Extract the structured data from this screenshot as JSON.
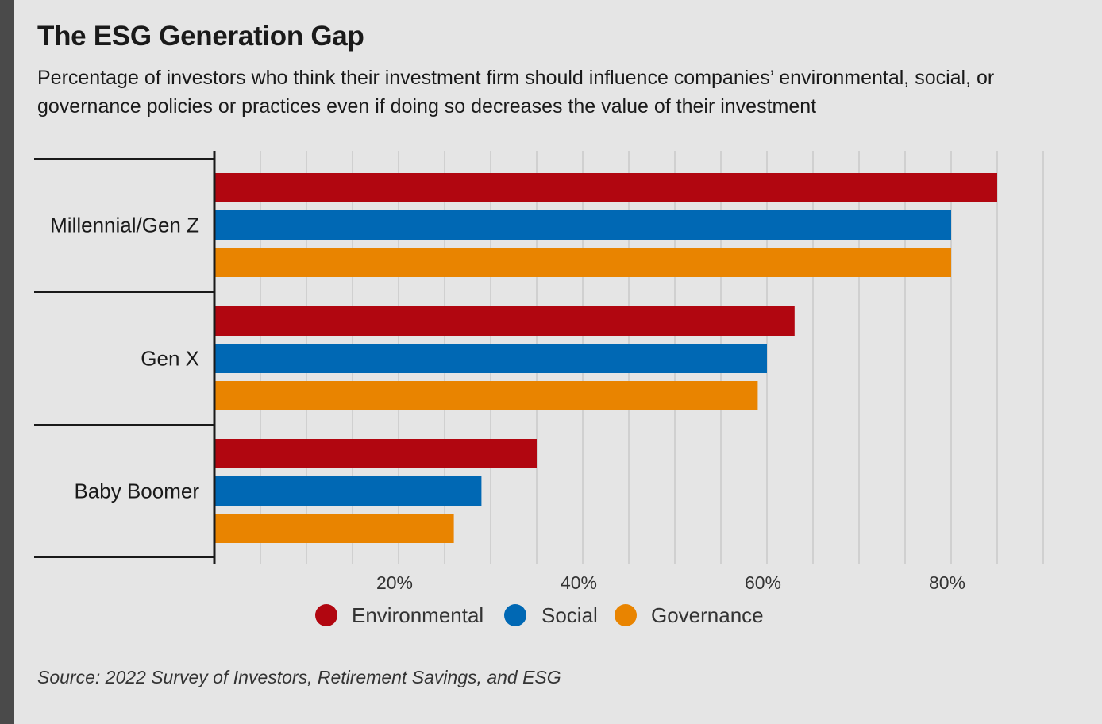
{
  "colors": {
    "environmental": "#b10610",
    "social": "#0068b4",
    "governance": "#e98400",
    "background": "#e5e5e5",
    "accent_bar": "#4a4a4a"
  },
  "chart_data": {
    "type": "bar",
    "orientation": "horizontal",
    "title": "The ESG Generation Gap",
    "subtitle": "Percentage of investors who think their investment firm should influence companies’ environmental, social, or governance policies or practices even if doing so decreases the value of their investment",
    "categories": [
      "Millennial/Gen Z",
      "Gen X",
      "Baby Boomer"
    ],
    "series": [
      {
        "name": "Environmental",
        "color": "#b10610",
        "values": [
          85,
          63,
          35
        ]
      },
      {
        "name": "Social",
        "color": "#0068b4",
        "values": [
          80,
          60,
          29
        ]
      },
      {
        "name": "Governance",
        "color": "#e98400",
        "values": [
          80,
          59,
          26
        ]
      }
    ],
    "x_ticks": [
      20,
      40,
      60,
      80
    ],
    "x_tick_labels": [
      "20%",
      "40%",
      "60%",
      "80%"
    ],
    "xlim": [
      0,
      90
    ],
    "grid": "vertical lines every 5%",
    "legend": "bottom-center",
    "source": "Source: 2022 Survey of Investors, Retirement Savings, and ESG"
  }
}
